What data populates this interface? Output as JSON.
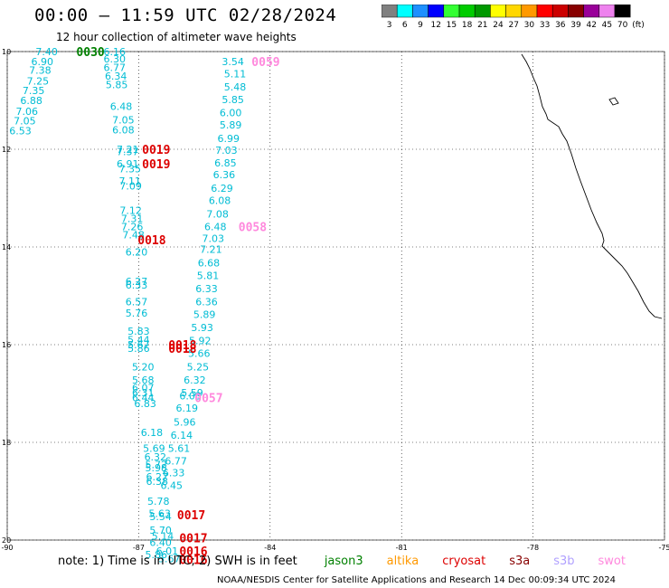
{
  "title": "00:00 – 11:59 UTC 02/28/2024",
  "subtitle": "12 hour collection of altimeter wave heights",
  "color_scale": {
    "unit": "(ft)",
    "stops": [
      {
        "label": "3",
        "color": "#808080"
      },
      {
        "label": "6",
        "color": "#00ffff"
      },
      {
        "label": "9",
        "color": "#1e90ff"
      },
      {
        "label": "12",
        "color": "#0000ff"
      },
      {
        "label": "15",
        "color": "#33ff33"
      },
      {
        "label": "18",
        "color": "#00cc00"
      },
      {
        "label": "21",
        "color": "#009900"
      },
      {
        "label": "24",
        "color": "#ffff00"
      },
      {
        "label": "27",
        "color": "#ffd700"
      },
      {
        "label": "30",
        "color": "#ff9900"
      },
      {
        "label": "33",
        "color": "#ff0000"
      },
      {
        "label": "36",
        "color": "#cc0000"
      },
      {
        "label": "39",
        "color": "#880000"
      },
      {
        "label": "42",
        "color": "#990099"
      },
      {
        "label": "45",
        "color": "#ee82ee"
      },
      {
        "label": "70",
        "color": "#000000"
      }
    ]
  },
  "axes": {
    "lon_ticks": [
      "-90",
      "-87",
      "-84",
      "-81",
      "-78",
      "-75"
    ],
    "lat_ticks": [
      "10",
      "12",
      "14",
      "16",
      "18",
      "20"
    ]
  },
  "observations": [
    {
      "lon": -89.1,
      "lat": 10.0,
      "v": "7.40"
    },
    {
      "lon": -89.2,
      "lat": 10.2,
      "v": "6.90"
    },
    {
      "lon": -89.25,
      "lat": 10.38,
      "v": "7.38"
    },
    {
      "lon": -89.3,
      "lat": 10.6,
      "v": "7.25"
    },
    {
      "lon": -89.4,
      "lat": 10.8,
      "v": "7.35"
    },
    {
      "lon": -89.45,
      "lat": 11.0,
      "v": "6.88"
    },
    {
      "lon": -89.55,
      "lat": 11.22,
      "v": "7.06"
    },
    {
      "lon": -89.6,
      "lat": 11.42,
      "v": "7.05"
    },
    {
      "lon": -89.7,
      "lat": 11.62,
      "v": "6.53"
    },
    {
      "lon": -87.55,
      "lat": 10.0,
      "v": "6.16"
    },
    {
      "lon": -87.55,
      "lat": 10.15,
      "v": "6.30"
    },
    {
      "lon": -87.55,
      "lat": 10.32,
      "v": "6.77"
    },
    {
      "lon": -87.52,
      "lat": 10.5,
      "v": "6.34"
    },
    {
      "lon": -87.5,
      "lat": 10.68,
      "v": "5.85"
    },
    {
      "lon": -87.4,
      "lat": 11.12,
      "v": "6.48"
    },
    {
      "lon": -87.35,
      "lat": 11.4,
      "v": "7.05"
    },
    {
      "lon": -87.35,
      "lat": 11.6,
      "v": "6.08"
    },
    {
      "lon": -87.25,
      "lat": 12.0,
      "v": "7.21"
    },
    {
      "lon": -87.25,
      "lat": 12.05,
      "v": "7.37"
    },
    {
      "lon": -87.25,
      "lat": 12.3,
      "v": "6.91"
    },
    {
      "lon": -87.2,
      "lat": 12.4,
      "v": "7.35"
    },
    {
      "lon": -87.2,
      "lat": 12.65,
      "v": "7.11"
    },
    {
      "lon": -87.18,
      "lat": 12.75,
      "v": "7.09"
    },
    {
      "lon": -87.18,
      "lat": 13.25,
      "v": "7.12"
    },
    {
      "lon": -87.15,
      "lat": 13.42,
      "v": "7.31"
    },
    {
      "lon": -87.15,
      "lat": 13.58,
      "v": "7.26"
    },
    {
      "lon": -87.12,
      "lat": 13.75,
      "v": "7.48"
    },
    {
      "lon": -87.05,
      "lat": 14.1,
      "v": "6.20"
    },
    {
      "lon": -87.05,
      "lat": 14.7,
      "v": "6.27"
    },
    {
      "lon": -87.05,
      "lat": 14.78,
      "v": "6.33"
    },
    {
      "lon": -87.05,
      "lat": 15.12,
      "v": "6.57"
    },
    {
      "lon": -87.05,
      "lat": 15.35,
      "v": "5.76"
    },
    {
      "lon": -87.0,
      "lat": 15.72,
      "v": "5.83"
    },
    {
      "lon": -87.0,
      "lat": 15.9,
      "v": "5.44"
    },
    {
      "lon": -87.0,
      "lat": 16.0,
      "v": "5.67"
    },
    {
      "lon": -87.0,
      "lat": 16.07,
      "v": "5.86"
    },
    {
      "lon": -86.9,
      "lat": 16.45,
      "v": "5.20"
    },
    {
      "lon": -86.9,
      "lat": 16.72,
      "v": "5.68"
    },
    {
      "lon": -86.9,
      "lat": 16.88,
      "v": "6.07"
    },
    {
      "lon": -86.9,
      "lat": 16.98,
      "v": "6.31"
    },
    {
      "lon": -86.9,
      "lat": 17.08,
      "v": "6.44"
    },
    {
      "lon": -86.85,
      "lat": 17.2,
      "v": "6.83"
    },
    {
      "lon": -86.7,
      "lat": 17.8,
      "v": "6.18"
    },
    {
      "lon": -86.65,
      "lat": 18.12,
      "v": "5.69"
    },
    {
      "lon": -86.62,
      "lat": 18.3,
      "v": "6.32"
    },
    {
      "lon": -86.6,
      "lat": 18.45,
      "v": "5.72"
    },
    {
      "lon": -86.6,
      "lat": 18.52,
      "v": "5.98"
    },
    {
      "lon": -86.58,
      "lat": 18.7,
      "v": "6.27"
    },
    {
      "lon": -86.58,
      "lat": 18.8,
      "v": "6.38"
    },
    {
      "lon": -86.55,
      "lat": 19.2,
      "v": "5.78"
    },
    {
      "lon": -86.52,
      "lat": 19.45,
      "v": "5.63"
    },
    {
      "lon": -86.5,
      "lat": 19.52,
      "v": "5.54"
    },
    {
      "lon": -86.5,
      "lat": 19.8,
      "v": "5.70"
    },
    {
      "lon": -86.45,
      "lat": 19.92,
      "v": "5.14"
    },
    {
      "lon": -86.5,
      "lat": 20.05,
      "v": "6.40"
    },
    {
      "lon": -86.35,
      "lat": 20.22,
      "v": "6.01"
    },
    {
      "lon": -86.6,
      "lat": 20.3,
      "v": "5.86"
    },
    {
      "lon": -86.3,
      "lat": 20.38,
      "v": "5.67"
    },
    {
      "lon": -84.85,
      "lat": 10.2,
      "v": "3.54"
    },
    {
      "lon": -84.8,
      "lat": 10.45,
      "v": "5.11"
    },
    {
      "lon": -84.8,
      "lat": 10.72,
      "v": "5.48"
    },
    {
      "lon": -84.85,
      "lat": 10.98,
      "v": "5.85"
    },
    {
      "lon": -84.9,
      "lat": 11.25,
      "v": "6.00"
    },
    {
      "lon": -84.9,
      "lat": 11.5,
      "v": "5.89"
    },
    {
      "lon": -84.95,
      "lat": 11.78,
      "v": "6.99"
    },
    {
      "lon": -85.0,
      "lat": 12.02,
      "v": "7.03"
    },
    {
      "lon": -85.02,
      "lat": 12.28,
      "v": "6.85"
    },
    {
      "lon": -85.05,
      "lat": 12.52,
      "v": "6.36"
    },
    {
      "lon": -85.1,
      "lat": 12.8,
      "v": "6.29"
    },
    {
      "lon": -85.15,
      "lat": 13.05,
      "v": "6.08"
    },
    {
      "lon": -85.2,
      "lat": 13.32,
      "v": "7.08"
    },
    {
      "lon": -85.25,
      "lat": 13.58,
      "v": "6.48"
    },
    {
      "lon": -85.3,
      "lat": 13.82,
      "v": "7.03"
    },
    {
      "lon": -85.35,
      "lat": 14.05,
      "v": "7.21"
    },
    {
      "lon": -85.4,
      "lat": 14.32,
      "v": "6.68"
    },
    {
      "lon": -85.42,
      "lat": 14.58,
      "v": "5.81"
    },
    {
      "lon": -85.45,
      "lat": 14.85,
      "v": "6.33"
    },
    {
      "lon": -85.45,
      "lat": 15.12,
      "v": "6.36"
    },
    {
      "lon": -85.5,
      "lat": 15.38,
      "v": "5.89"
    },
    {
      "lon": -85.55,
      "lat": 15.65,
      "v": "5.93"
    },
    {
      "lon": -85.6,
      "lat": 15.92,
      "v": "5.92"
    },
    {
      "lon": -85.62,
      "lat": 16.18,
      "v": "5.66"
    },
    {
      "lon": -85.65,
      "lat": 16.45,
      "v": "5.25"
    },
    {
      "lon": -85.72,
      "lat": 16.72,
      "v": "6.32"
    },
    {
      "lon": -85.78,
      "lat": 16.98,
      "v": "5.59"
    },
    {
      "lon": -85.82,
      "lat": 17.05,
      "v": "6.03"
    },
    {
      "lon": -85.9,
      "lat": 17.3,
      "v": "6.19"
    },
    {
      "lon": -85.95,
      "lat": 17.58,
      "v": "5.96"
    },
    {
      "lon": -86.02,
      "lat": 17.85,
      "v": "6.14"
    },
    {
      "lon": -86.08,
      "lat": 18.12,
      "v": "5.61"
    },
    {
      "lon": -86.15,
      "lat": 18.38,
      "v": "6.77"
    },
    {
      "lon": -86.2,
      "lat": 18.62,
      "v": "6.33"
    },
    {
      "lon": -86.25,
      "lat": 18.88,
      "v": "6.45"
    }
  ],
  "pass_labels": [
    {
      "lon": -88.1,
      "lat": 10.0,
      "text": "0030",
      "color": "#008000"
    },
    {
      "lon": -84.1,
      "lat": 10.2,
      "text": "0059",
      "color": "#ff88dd"
    },
    {
      "lon": -86.6,
      "lat": 12.0,
      "text": "0019",
      "color": "#dd0000"
    },
    {
      "lon": -86.6,
      "lat": 12.3,
      "text": "0019",
      "color": "#dd0000"
    },
    {
      "lon": -84.4,
      "lat": 13.58,
      "text": "0058",
      "color": "#ff88dd"
    },
    {
      "lon": -86.7,
      "lat": 13.85,
      "text": "0018",
      "color": "#dd0000"
    },
    {
      "lon": -86.0,
      "lat": 16.0,
      "text": "0018",
      "color": "#dd0000"
    },
    {
      "lon": -86.0,
      "lat": 16.07,
      "text": "0018",
      "color": "#dd0000"
    },
    {
      "lon": -85.4,
      "lat": 17.08,
      "text": "0057",
      "color": "#ff88dd"
    },
    {
      "lon": -85.8,
      "lat": 19.48,
      "text": "0017",
      "color": "#dd0000"
    },
    {
      "lon": -85.75,
      "lat": 19.95,
      "text": "0017",
      "color": "#dd0000"
    },
    {
      "lon": -85.75,
      "lat": 20.22,
      "text": "0016",
      "color": "#dd0000"
    },
    {
      "lon": -85.75,
      "lat": 20.4,
      "text": "0016",
      "color": "#dd0000"
    }
  ],
  "note": {
    "prefix": "note: 1) Time is in UTC; 2) SWH is in feet",
    "missions": [
      {
        "name": "jason3",
        "color": "#008000"
      },
      {
        "name": "altika",
        "color": "#ff9900"
      },
      {
        "name": "cryosat",
        "color": "#dd0000"
      },
      {
        "name": "s3a",
        "color": "#880000"
      },
      {
        "name": "s3b",
        "color": "#b0a0ff"
      },
      {
        "name": "swot",
        "color": "#ff88dd"
      }
    ]
  },
  "credit": "NOAA/NESDIS Center for Satellite Applications and Research   14 Dec 00:09:34 UTC 2024",
  "colors": {
    "obs": "#00bcd4"
  }
}
